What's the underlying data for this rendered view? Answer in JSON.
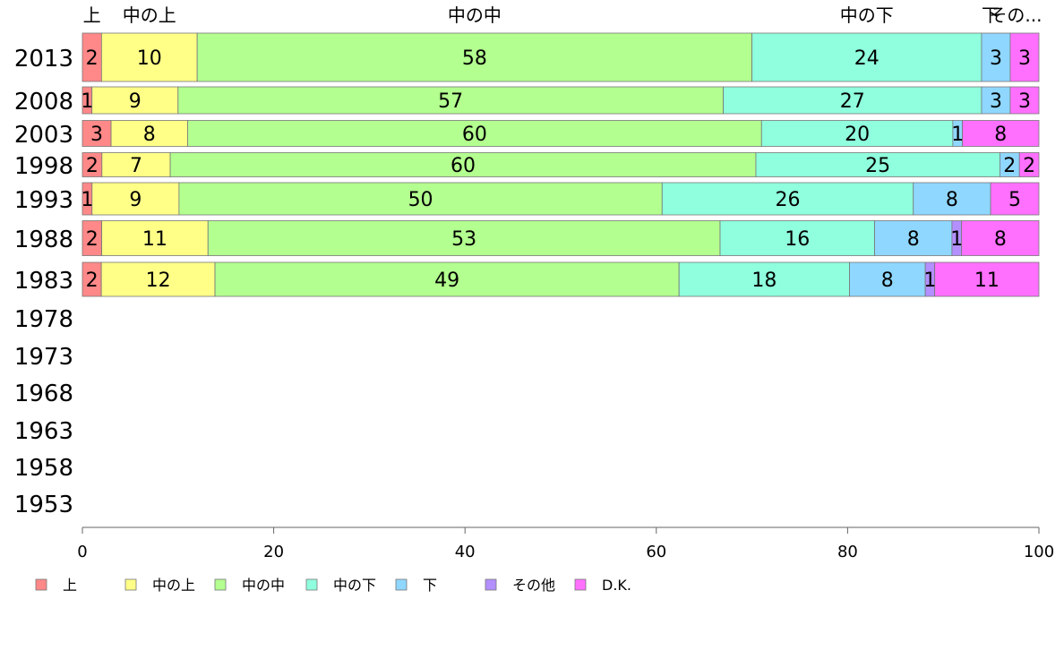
{
  "chart_data": {
    "type": "bar",
    "orientation": "horizontal-stacked-percent",
    "xlim": [
      0,
      100
    ],
    "x_ticks": [
      "0",
      "20",
      "40",
      "60",
      "80",
      "100"
    ],
    "categories": [
      "2013",
      "2008",
      "2003",
      "1998",
      "1993",
      "1988",
      "1983",
      "1978",
      "1973",
      "1968",
      "1963",
      "1958",
      "1953"
    ],
    "series": [
      {
        "name": "上",
        "color": "#ff8888",
        "values": [
          2,
          1,
          3,
          2,
          1,
          2,
          2,
          null,
          null,
          null,
          null,
          null,
          null
        ]
      },
      {
        "name": "中の上",
        "color": "#ffff88",
        "values": [
          10,
          9,
          8,
          7,
          9,
          11,
          12,
          null,
          null,
          null,
          null,
          null,
          null
        ]
      },
      {
        "name": "中の中",
        "color": "#b3ff8f",
        "values": [
          58,
          57,
          60,
          60,
          50,
          53,
          49,
          null,
          null,
          null,
          null,
          null,
          null
        ]
      },
      {
        "name": "中の下",
        "color": "#8fffdd",
        "values": [
          24,
          27,
          20,
          25,
          26,
          16,
          18,
          null,
          null,
          null,
          null,
          null,
          null
        ]
      },
      {
        "name": "下",
        "color": "#8fd7ff",
        "values": [
          3,
          3,
          1,
          2,
          8,
          8,
          8,
          null,
          null,
          null,
          null,
          null,
          null
        ]
      },
      {
        "name": "その他",
        "color": "#b38fff",
        "values": [
          0,
          0,
          0,
          0,
          0,
          1,
          1,
          null,
          null,
          null,
          null,
          null,
          null
        ]
      },
      {
        "name": "D.K.",
        "color": "#ff70ff",
        "values": [
          3,
          3,
          8,
          2,
          5,
          8,
          11,
          null,
          null,
          null,
          null,
          null,
          null
        ]
      }
    ],
    "top_labels": [
      "上",
      "中の上",
      "中の中",
      "中の下",
      "下",
      "その..."
    ],
    "legend_position": "bottom"
  }
}
